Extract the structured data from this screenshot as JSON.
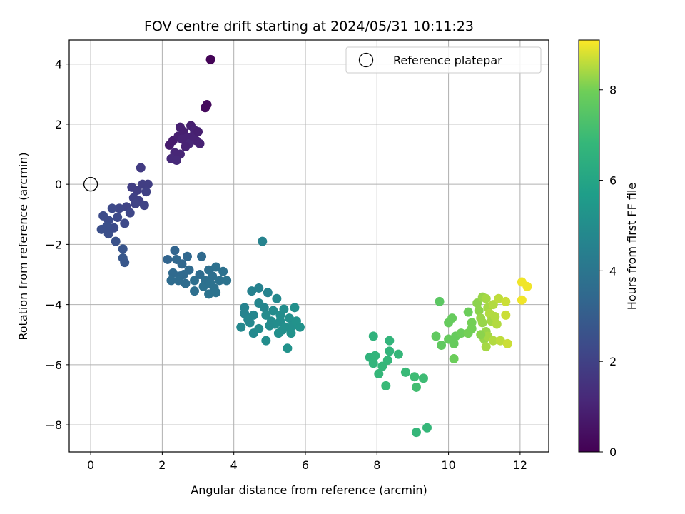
{
  "chart_data": {
    "type": "scatter",
    "title": "FOV centre drift starting at 2024/05/31 10:11:23",
    "xlabel": "Angular distance from reference (arcmin)",
    "ylabel": "Rotation from reference (arcmin)",
    "xlim": [
      -0.6,
      12.8
    ],
    "ylim": [
      -8.9,
      4.8
    ],
    "xticks": [
      0,
      2,
      4,
      6,
      8,
      10,
      12
    ],
    "yticks": [
      -8,
      -6,
      -4,
      -2,
      0,
      2,
      4
    ],
    "grid": true,
    "legend": {
      "label": "Reference platepar",
      "position": "top-right",
      "marker": "open-circle"
    },
    "reference_point": {
      "x": 0,
      "y": 0
    },
    "colorbar": {
      "label": "Hours from first FF file",
      "colormap": "viridis",
      "range": [
        0,
        9.1
      ],
      "ticks": [
        0,
        2,
        4,
        6,
        8
      ]
    },
    "series": [
      {
        "points": [
          {
            "x": 3.35,
            "y": 4.15,
            "t": 0.1
          },
          {
            "x": 3.25,
            "y": 2.65,
            "t": 0.3
          },
          {
            "x": 3.2,
            "y": 2.55,
            "t": 0.3
          },
          {
            "x": 2.2,
            "y": 1.3,
            "t": 0.8
          },
          {
            "x": 2.3,
            "y": 1.45,
            "t": 0.8
          },
          {
            "x": 2.45,
            "y": 1.6,
            "t": 0.9
          },
          {
            "x": 2.5,
            "y": 1.9,
            "t": 0.9
          },
          {
            "x": 2.6,
            "y": 1.75,
            "t": 0.9
          },
          {
            "x": 2.7,
            "y": 1.55,
            "t": 1.0
          },
          {
            "x": 2.8,
            "y": 1.95,
            "t": 0.9
          },
          {
            "x": 2.9,
            "y": 1.8,
            "t": 1.0
          },
          {
            "x": 2.95,
            "y": 1.45,
            "t": 1.0
          },
          {
            "x": 3.05,
            "y": 1.35,
            "t": 1.0
          },
          {
            "x": 2.75,
            "y": 1.35,
            "t": 1.1
          },
          {
            "x": 2.55,
            "y": 1.5,
            "t": 1.0
          },
          {
            "x": 2.35,
            "y": 1.05,
            "t": 1.1
          },
          {
            "x": 2.5,
            "y": 1.0,
            "t": 1.1
          },
          {
            "x": 2.25,
            "y": 0.85,
            "t": 1.2
          },
          {
            "x": 2.4,
            "y": 0.8,
            "t": 1.2
          },
          {
            "x": 2.65,
            "y": 1.25,
            "t": 1.0
          },
          {
            "x": 2.85,
            "y": 1.6,
            "t": 1.0
          },
          {
            "x": 3.0,
            "y": 1.75,
            "t": 0.9
          },
          {
            "x": 1.4,
            "y": 0.55,
            "t": 1.8
          },
          {
            "x": 1.15,
            "y": -0.1,
            "t": 1.9
          },
          {
            "x": 1.3,
            "y": -0.2,
            "t": 1.9
          },
          {
            "x": 1.45,
            "y": 0.0,
            "t": 1.9
          },
          {
            "x": 1.6,
            "y": 0.0,
            "t": 1.9
          },
          {
            "x": 1.2,
            "y": -0.45,
            "t": 2.0
          },
          {
            "x": 1.35,
            "y": -0.55,
            "t": 2.0
          },
          {
            "x": 1.5,
            "y": -0.7,
            "t": 2.1
          },
          {
            "x": 1.55,
            "y": -0.25,
            "t": 2.0
          },
          {
            "x": 1.0,
            "y": -0.75,
            "t": 2.1
          },
          {
            "x": 0.8,
            "y": -0.8,
            "t": 2.2
          },
          {
            "x": 0.6,
            "y": -0.8,
            "t": 2.3
          },
          {
            "x": 0.35,
            "y": -1.05,
            "t": 2.4
          },
          {
            "x": 0.5,
            "y": -1.2,
            "t": 2.4
          },
          {
            "x": 0.75,
            "y": -1.1,
            "t": 2.3
          },
          {
            "x": 0.95,
            "y": -1.3,
            "t": 2.3
          },
          {
            "x": 0.3,
            "y": -1.5,
            "t": 2.5
          },
          {
            "x": 0.5,
            "y": -1.65,
            "t": 2.5
          },
          {
            "x": 0.7,
            "y": -1.9,
            "t": 2.6
          },
          {
            "x": 0.9,
            "y": -2.15,
            "t": 2.7
          },
          {
            "x": 0.9,
            "y": -2.45,
            "t": 2.8
          },
          {
            "x": 0.95,
            "y": -2.6,
            "t": 2.8
          },
          {
            "x": 1.1,
            "y": -0.95,
            "t": 2.2
          },
          {
            "x": 0.65,
            "y": -1.45,
            "t": 2.4
          },
          {
            "x": 1.25,
            "y": -0.65,
            "t": 2.1
          },
          {
            "x": 0.45,
            "y": -1.4,
            "t": 2.5
          },
          {
            "x": 2.15,
            "y": -2.5,
            "t": 3.3
          },
          {
            "x": 2.35,
            "y": -2.2,
            "t": 3.3
          },
          {
            "x": 2.4,
            "y": -2.5,
            "t": 3.4
          },
          {
            "x": 2.55,
            "y": -2.65,
            "t": 3.4
          },
          {
            "x": 2.3,
            "y": -2.95,
            "t": 3.5
          },
          {
            "x": 2.5,
            "y": -3.05,
            "t": 3.5
          },
          {
            "x": 2.7,
            "y": -2.4,
            "t": 3.4
          },
          {
            "x": 2.75,
            "y": -2.85,
            "t": 3.5
          },
          {
            "x": 2.25,
            "y": -3.2,
            "t": 3.6
          },
          {
            "x": 2.45,
            "y": -3.2,
            "t": 3.6
          },
          {
            "x": 2.65,
            "y": -3.3,
            "t": 3.6
          },
          {
            "x": 2.9,
            "y": -3.2,
            "t": 3.7
          },
          {
            "x": 2.9,
            "y": -3.55,
            "t": 3.7
          },
          {
            "x": 3.1,
            "y": -2.4,
            "t": 3.5
          },
          {
            "x": 3.05,
            "y": -3.0,
            "t": 3.6
          },
          {
            "x": 3.2,
            "y": -3.2,
            "t": 3.7
          },
          {
            "x": 3.3,
            "y": -2.85,
            "t": 3.7
          },
          {
            "x": 3.4,
            "y": -3.05,
            "t": 3.7
          },
          {
            "x": 3.5,
            "y": -2.75,
            "t": 3.8
          },
          {
            "x": 3.45,
            "y": -3.45,
            "t": 3.8
          },
          {
            "x": 3.6,
            "y": -3.2,
            "t": 3.8
          },
          {
            "x": 3.7,
            "y": -2.9,
            "t": 3.8
          },
          {
            "x": 3.8,
            "y": -3.2,
            "t": 3.9
          },
          {
            "x": 3.3,
            "y": -3.65,
            "t": 3.9
          },
          {
            "x": 3.5,
            "y": -3.6,
            "t": 3.9
          },
          {
            "x": 3.15,
            "y": -3.4,
            "t": 3.8
          },
          {
            "x": 2.6,
            "y": -3.0,
            "t": 3.5
          },
          {
            "x": 3.35,
            "y": -3.3,
            "t": 3.8
          },
          {
            "x": 4.8,
            "y": -1.9,
            "t": 4.6
          },
          {
            "x": 4.5,
            "y": -3.55,
            "t": 4.5
          },
          {
            "x": 4.7,
            "y": -3.45,
            "t": 4.5
          },
          {
            "x": 4.95,
            "y": -3.6,
            "t": 4.6
          },
          {
            "x": 4.3,
            "y": -4.1,
            "t": 4.6
          },
          {
            "x": 4.3,
            "y": -4.3,
            "t": 4.6
          },
          {
            "x": 4.55,
            "y": -4.35,
            "t": 4.7
          },
          {
            "x": 4.7,
            "y": -3.95,
            "t": 4.7
          },
          {
            "x": 4.85,
            "y": -4.1,
            "t": 4.7
          },
          {
            "x": 4.2,
            "y": -4.75,
            "t": 4.8
          },
          {
            "x": 4.45,
            "y": -4.6,
            "t": 4.8
          },
          {
            "x": 4.55,
            "y": -4.95,
            "t": 4.8
          },
          {
            "x": 4.7,
            "y": -4.8,
            "t": 4.9
          },
          {
            "x": 4.9,
            "y": -4.35,
            "t": 4.9
          },
          {
            "x": 5.05,
            "y": -4.55,
            "t": 4.9
          },
          {
            "x": 5.2,
            "y": -3.8,
            "t": 4.8
          },
          {
            "x": 5.1,
            "y": -4.2,
            "t": 4.9
          },
          {
            "x": 5.3,
            "y": -4.35,
            "t": 5.0
          },
          {
            "x": 5.4,
            "y": -4.15,
            "t": 5.0
          },
          {
            "x": 5.15,
            "y": -4.65,
            "t": 5.0
          },
          {
            "x": 5.3,
            "y": -4.55,
            "t": 5.0
          },
          {
            "x": 5.45,
            "y": -4.75,
            "t": 5.1
          },
          {
            "x": 5.55,
            "y": -4.45,
            "t": 5.1
          },
          {
            "x": 5.65,
            "y": -4.7,
            "t": 5.1
          },
          {
            "x": 5.75,
            "y": -4.55,
            "t": 5.2
          },
          {
            "x": 5.7,
            "y": -4.1,
            "t": 5.1
          },
          {
            "x": 5.85,
            "y": -4.75,
            "t": 5.2
          },
          {
            "x": 5.6,
            "y": -4.95,
            "t": 5.2
          },
          {
            "x": 4.9,
            "y": -5.2,
            "t": 5.0
          },
          {
            "x": 5.5,
            "y": -5.45,
            "t": 5.2
          },
          {
            "x": 5.0,
            "y": -4.7,
            "t": 4.9
          },
          {
            "x": 5.35,
            "y": -4.85,
            "t": 5.1
          },
          {
            "x": 4.4,
            "y": -4.5,
            "t": 4.7
          },
          {
            "x": 5.25,
            "y": -4.95,
            "t": 5.1
          },
          {
            "x": 7.9,
            "y": -5.05,
            "t": 6.6
          },
          {
            "x": 7.8,
            "y": -5.75,
            "t": 6.6
          },
          {
            "x": 7.95,
            "y": -5.7,
            "t": 6.7
          },
          {
            "x": 7.9,
            "y": -5.95,
            "t": 6.7
          },
          {
            "x": 8.05,
            "y": -6.3,
            "t": 6.8
          },
          {
            "x": 8.15,
            "y": -6.05,
            "t": 6.8
          },
          {
            "x": 8.35,
            "y": -5.2,
            "t": 6.7
          },
          {
            "x": 8.35,
            "y": -5.55,
            "t": 6.7
          },
          {
            "x": 8.3,
            "y": -5.85,
            "t": 6.8
          },
          {
            "x": 8.6,
            "y": -5.65,
            "t": 6.8
          },
          {
            "x": 8.25,
            "y": -6.7,
            "t": 6.9
          },
          {
            "x": 8.8,
            "y": -6.25,
            "t": 6.9
          },
          {
            "x": 9.05,
            "y": -6.4,
            "t": 7.0
          },
          {
            "x": 9.3,
            "y": -6.45,
            "t": 7.0
          },
          {
            "x": 9.1,
            "y": -6.75,
            "t": 7.1
          },
          {
            "x": 9.1,
            "y": -8.25,
            "t": 6.8
          },
          {
            "x": 9.4,
            "y": -8.1,
            "t": 6.8
          },
          {
            "x": 9.75,
            "y": -3.9,
            "t": 7.6
          },
          {
            "x": 9.65,
            "y": -5.05,
            "t": 7.7
          },
          {
            "x": 9.8,
            "y": -5.35,
            "t": 7.7
          },
          {
            "x": 10.0,
            "y": -4.6,
            "t": 7.8
          },
          {
            "x": 10.1,
            "y": -4.45,
            "t": 7.8
          },
          {
            "x": 10.0,
            "y": -5.15,
            "t": 7.8
          },
          {
            "x": 10.15,
            "y": -5.3,
            "t": 7.8
          },
          {
            "x": 10.2,
            "y": -5.05,
            "t": 7.8
          },
          {
            "x": 10.15,
            "y": -5.8,
            "t": 7.9
          },
          {
            "x": 10.35,
            "y": -4.95,
            "t": 7.9
          },
          {
            "x": 10.55,
            "y": -4.25,
            "t": 7.9
          },
          {
            "x": 10.65,
            "y": -4.6,
            "t": 8.0
          },
          {
            "x": 10.55,
            "y": -4.95,
            "t": 8.0
          },
          {
            "x": 10.65,
            "y": -4.8,
            "t": 8.0
          },
          {
            "x": 10.8,
            "y": -3.95,
            "t": 8.2
          },
          {
            "x": 10.85,
            "y": -4.2,
            "t": 8.2
          },
          {
            "x": 10.9,
            "y": -4.45,
            "t": 8.3
          },
          {
            "x": 10.95,
            "y": -3.75,
            "t": 8.3
          },
          {
            "x": 10.95,
            "y": -4.6,
            "t": 8.3
          },
          {
            "x": 11.05,
            "y": -3.8,
            "t": 8.4
          },
          {
            "x": 11.05,
            "y": -4.9,
            "t": 8.3
          },
          {
            "x": 11.1,
            "y": -4.1,
            "t": 8.4
          },
          {
            "x": 11.15,
            "y": -4.3,
            "t": 8.5
          },
          {
            "x": 11.2,
            "y": -4.55,
            "t": 8.4
          },
          {
            "x": 11.25,
            "y": -4.0,
            "t": 8.5
          },
          {
            "x": 11.3,
            "y": -4.4,
            "t": 8.5
          },
          {
            "x": 11.35,
            "y": -4.65,
            "t": 8.5
          },
          {
            "x": 11.0,
            "y": -5.15,
            "t": 8.3
          },
          {
            "x": 11.1,
            "y": -5.05,
            "t": 8.4
          },
          {
            "x": 11.25,
            "y": -5.2,
            "t": 8.5
          },
          {
            "x": 11.45,
            "y": -5.2,
            "t": 8.6
          },
          {
            "x": 11.05,
            "y": -5.4,
            "t": 8.4
          },
          {
            "x": 11.4,
            "y": -3.8,
            "t": 8.6
          },
          {
            "x": 11.6,
            "y": -3.9,
            "t": 8.7
          },
          {
            "x": 11.6,
            "y": -4.35,
            "t": 8.7
          },
          {
            "x": 11.65,
            "y": -5.3,
            "t": 8.7
          },
          {
            "x": 12.05,
            "y": -3.25,
            "t": 9.0
          },
          {
            "x": 12.2,
            "y": -3.4,
            "t": 9.0
          },
          {
            "x": 12.05,
            "y": -3.85,
            "t": 9.0
          },
          {
            "x": 10.9,
            "y": -5.0,
            "t": 8.2
          }
        ]
      }
    ]
  }
}
